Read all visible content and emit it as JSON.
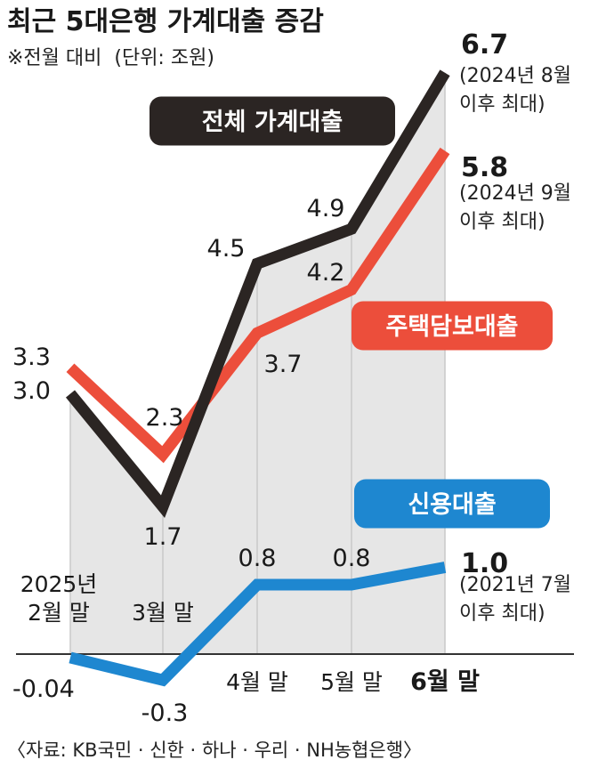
{
  "title": "최근 5대은행 가계대출 증감",
  "subtitle": "※전월 대비  (단위: 조원)",
  "source": "〈자료: KB국민 · 신한 · 하나 · 우리 · NH농협은행〉",
  "colors": {
    "total": "#2b2523",
    "mortgage": "#ec4e3b",
    "credit": "#1e87d0",
    "area": "#e6e6e6",
    "grid": "#c8c8c8"
  },
  "chart_data": {
    "type": "line",
    "categories": [
      "2025년 2월 말",
      "3월 말",
      "4월 말",
      "5월 말",
      "6월 말"
    ],
    "series": [
      {
        "name": "전체 가계대출",
        "values": [
          3.0,
          1.7,
          4.5,
          4.9,
          6.7
        ],
        "labels": [
          "3.0",
          "1.7",
          "4.5",
          "4.9",
          "6.7"
        ],
        "note": [
          "(2024년 8월",
          "이후 최대)"
        ]
      },
      {
        "name": "주택담보대출",
        "values": [
          3.3,
          2.3,
          3.7,
          4.2,
          5.8
        ],
        "labels": [
          "3.3",
          "2.3",
          "3.7",
          "4.2",
          "5.8"
        ],
        "note": [
          "(2024년 9월",
          "이후 최대)"
        ]
      },
      {
        "name": "신용대출",
        "values": [
          -0.04,
          -0.3,
          0.8,
          0.8,
          1.0
        ],
        "labels": [
          "-0.04",
          "-0.3",
          "0.8",
          "0.8",
          "1.0"
        ],
        "note": [
          "(2021년 7월",
          "이후 최대)"
        ]
      }
    ],
    "xlabels": [
      [
        "2025년",
        "2월 말"
      ],
      [
        "3월 말"
      ],
      [
        "4월 말"
      ],
      [
        "5월 말"
      ],
      [
        "6월 말"
      ]
    ]
  }
}
